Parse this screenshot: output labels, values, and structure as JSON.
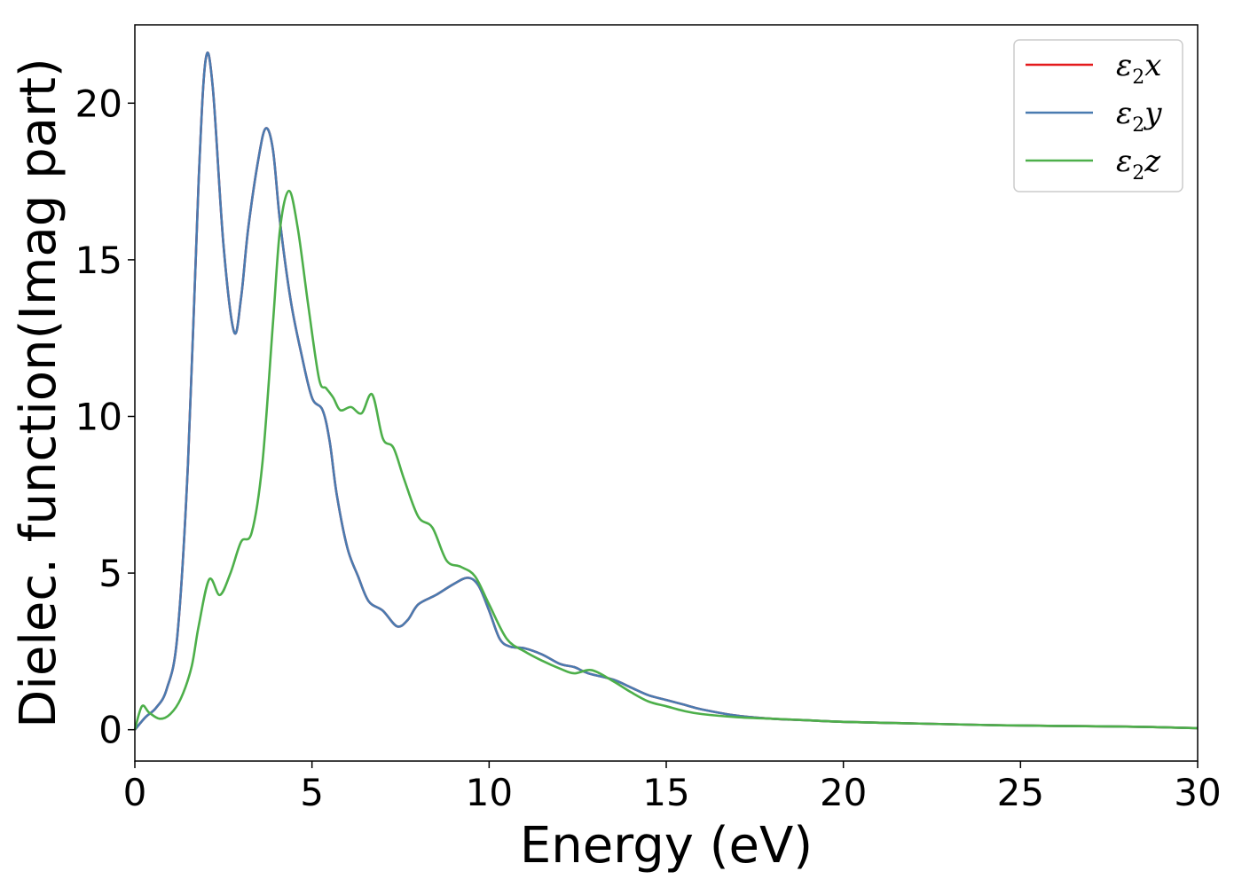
{
  "chart_data": {
    "type": "line",
    "xlabel": "Energy (eV)",
    "ylabel": "Dielec. function(Imag part)",
    "xlim": [
      0,
      30
    ],
    "ylim": [
      -1,
      22.5
    ],
    "x_ticks": [
      0,
      5,
      10,
      15,
      20,
      25,
      30
    ],
    "y_ticks": [
      0,
      5,
      10,
      15,
      20
    ],
    "grid": false,
    "legend_position": "top-right",
    "series": [
      {
        "name": "ε2x",
        "legend": {
          "base": "ε",
          "sub": "2",
          "suffix": "x"
        },
        "color": "#e41a1c",
        "x": [
          0,
          0.3,
          0.6,
          0.9,
          1.2,
          1.5,
          1.8,
          2.0,
          2.2,
          2.5,
          2.8,
          3.0,
          3.2,
          3.5,
          3.7,
          3.9,
          4.1,
          4.4,
          4.7,
          5.0,
          5.3,
          5.5,
          5.7,
          6.0,
          6.3,
          6.6,
          7.0,
          7.4,
          7.7,
          8.0,
          8.5,
          9.0,
          9.4,
          9.7,
          10.0,
          10.3,
          10.6,
          11.0,
          11.5,
          12.0,
          12.4,
          12.8,
          13.5,
          14.0,
          14.5,
          15.0,
          15.5,
          16.0,
          17.0,
          18.0,
          19.0,
          20.0,
          22.0,
          24.0,
          26.0,
          28.0,
          30.0
        ],
        "values": [
          0,
          0.4,
          0.7,
          1.3,
          3.0,
          8.5,
          17.5,
          21.4,
          20.5,
          15.5,
          12.7,
          13.8,
          16.0,
          18.3,
          19.2,
          18.5,
          16.2,
          13.7,
          12.0,
          10.6,
          10.2,
          9.2,
          7.5,
          5.8,
          4.9,
          4.1,
          3.8,
          3.3,
          3.5,
          4.0,
          4.3,
          4.65,
          4.85,
          4.6,
          3.8,
          2.9,
          2.65,
          2.6,
          2.4,
          2.1,
          2.0,
          1.8,
          1.6,
          1.35,
          1.1,
          0.95,
          0.8,
          0.65,
          0.45,
          0.35,
          0.3,
          0.25,
          0.2,
          0.15,
          0.12,
          0.1,
          0.05
        ]
      },
      {
        "name": "ε2y",
        "legend": {
          "base": "ε",
          "sub": "2",
          "suffix": "y"
        },
        "color": "#4a7bb0",
        "x": [
          0,
          0.3,
          0.6,
          0.9,
          1.2,
          1.5,
          1.8,
          2.0,
          2.2,
          2.5,
          2.8,
          3.0,
          3.2,
          3.5,
          3.7,
          3.9,
          4.1,
          4.4,
          4.7,
          5.0,
          5.3,
          5.5,
          5.7,
          6.0,
          6.3,
          6.6,
          7.0,
          7.4,
          7.7,
          8.0,
          8.5,
          9.0,
          9.4,
          9.7,
          10.0,
          10.3,
          10.6,
          11.0,
          11.5,
          12.0,
          12.4,
          12.8,
          13.5,
          14.0,
          14.5,
          15.0,
          15.5,
          16.0,
          17.0,
          18.0,
          19.0,
          20.0,
          22.0,
          24.0,
          26.0,
          28.0,
          30.0
        ],
        "values": [
          0,
          0.4,
          0.7,
          1.3,
          3.0,
          8.5,
          17.5,
          21.4,
          20.5,
          15.5,
          12.7,
          13.8,
          16.0,
          18.3,
          19.2,
          18.5,
          16.2,
          13.7,
          12.0,
          10.6,
          10.2,
          9.2,
          7.5,
          5.8,
          4.9,
          4.1,
          3.8,
          3.3,
          3.5,
          4.0,
          4.3,
          4.65,
          4.85,
          4.6,
          3.8,
          2.9,
          2.65,
          2.6,
          2.4,
          2.1,
          2.0,
          1.8,
          1.6,
          1.35,
          1.1,
          0.95,
          0.8,
          0.65,
          0.45,
          0.35,
          0.3,
          0.25,
          0.2,
          0.15,
          0.12,
          0.1,
          0.05
        ]
      },
      {
        "name": "ε2z",
        "legend": {
          "base": "ε",
          "sub": "2",
          "suffix": "z"
        },
        "color": "#4daf4a",
        "x": [
          0,
          0.2,
          0.4,
          0.7,
          1.0,
          1.3,
          1.6,
          1.8,
          2.1,
          2.4,
          2.7,
          3.0,
          3.3,
          3.6,
          3.9,
          4.1,
          4.35,
          4.6,
          4.9,
          5.2,
          5.4,
          5.6,
          5.8,
          6.1,
          6.4,
          6.7,
          7.0,
          7.3,
          7.6,
          8.0,
          8.4,
          8.8,
          9.2,
          9.6,
          10.0,
          10.5,
          11.0,
          11.5,
          12.0,
          12.4,
          12.9,
          13.5,
          14.0,
          14.5,
          15.0,
          15.5,
          16.0,
          17.0,
          18.0,
          19.0,
          20.0,
          22.0,
          24.0,
          26.0,
          28.0,
          30.0
        ],
        "values": [
          0,
          0.75,
          0.55,
          0.35,
          0.5,
          1.0,
          2.0,
          3.3,
          4.8,
          4.3,
          5.0,
          6.0,
          6.3,
          8.5,
          13.0,
          16.0,
          17.2,
          16.0,
          13.5,
          11.2,
          10.9,
          10.6,
          10.2,
          10.3,
          10.1,
          10.7,
          9.3,
          9.0,
          8.0,
          6.8,
          6.45,
          5.4,
          5.2,
          4.9,
          4.0,
          2.9,
          2.5,
          2.2,
          1.95,
          1.8,
          1.9,
          1.55,
          1.2,
          0.9,
          0.75,
          0.6,
          0.5,
          0.4,
          0.35,
          0.3,
          0.25,
          0.2,
          0.15,
          0.12,
          0.1,
          0.05
        ]
      }
    ]
  }
}
